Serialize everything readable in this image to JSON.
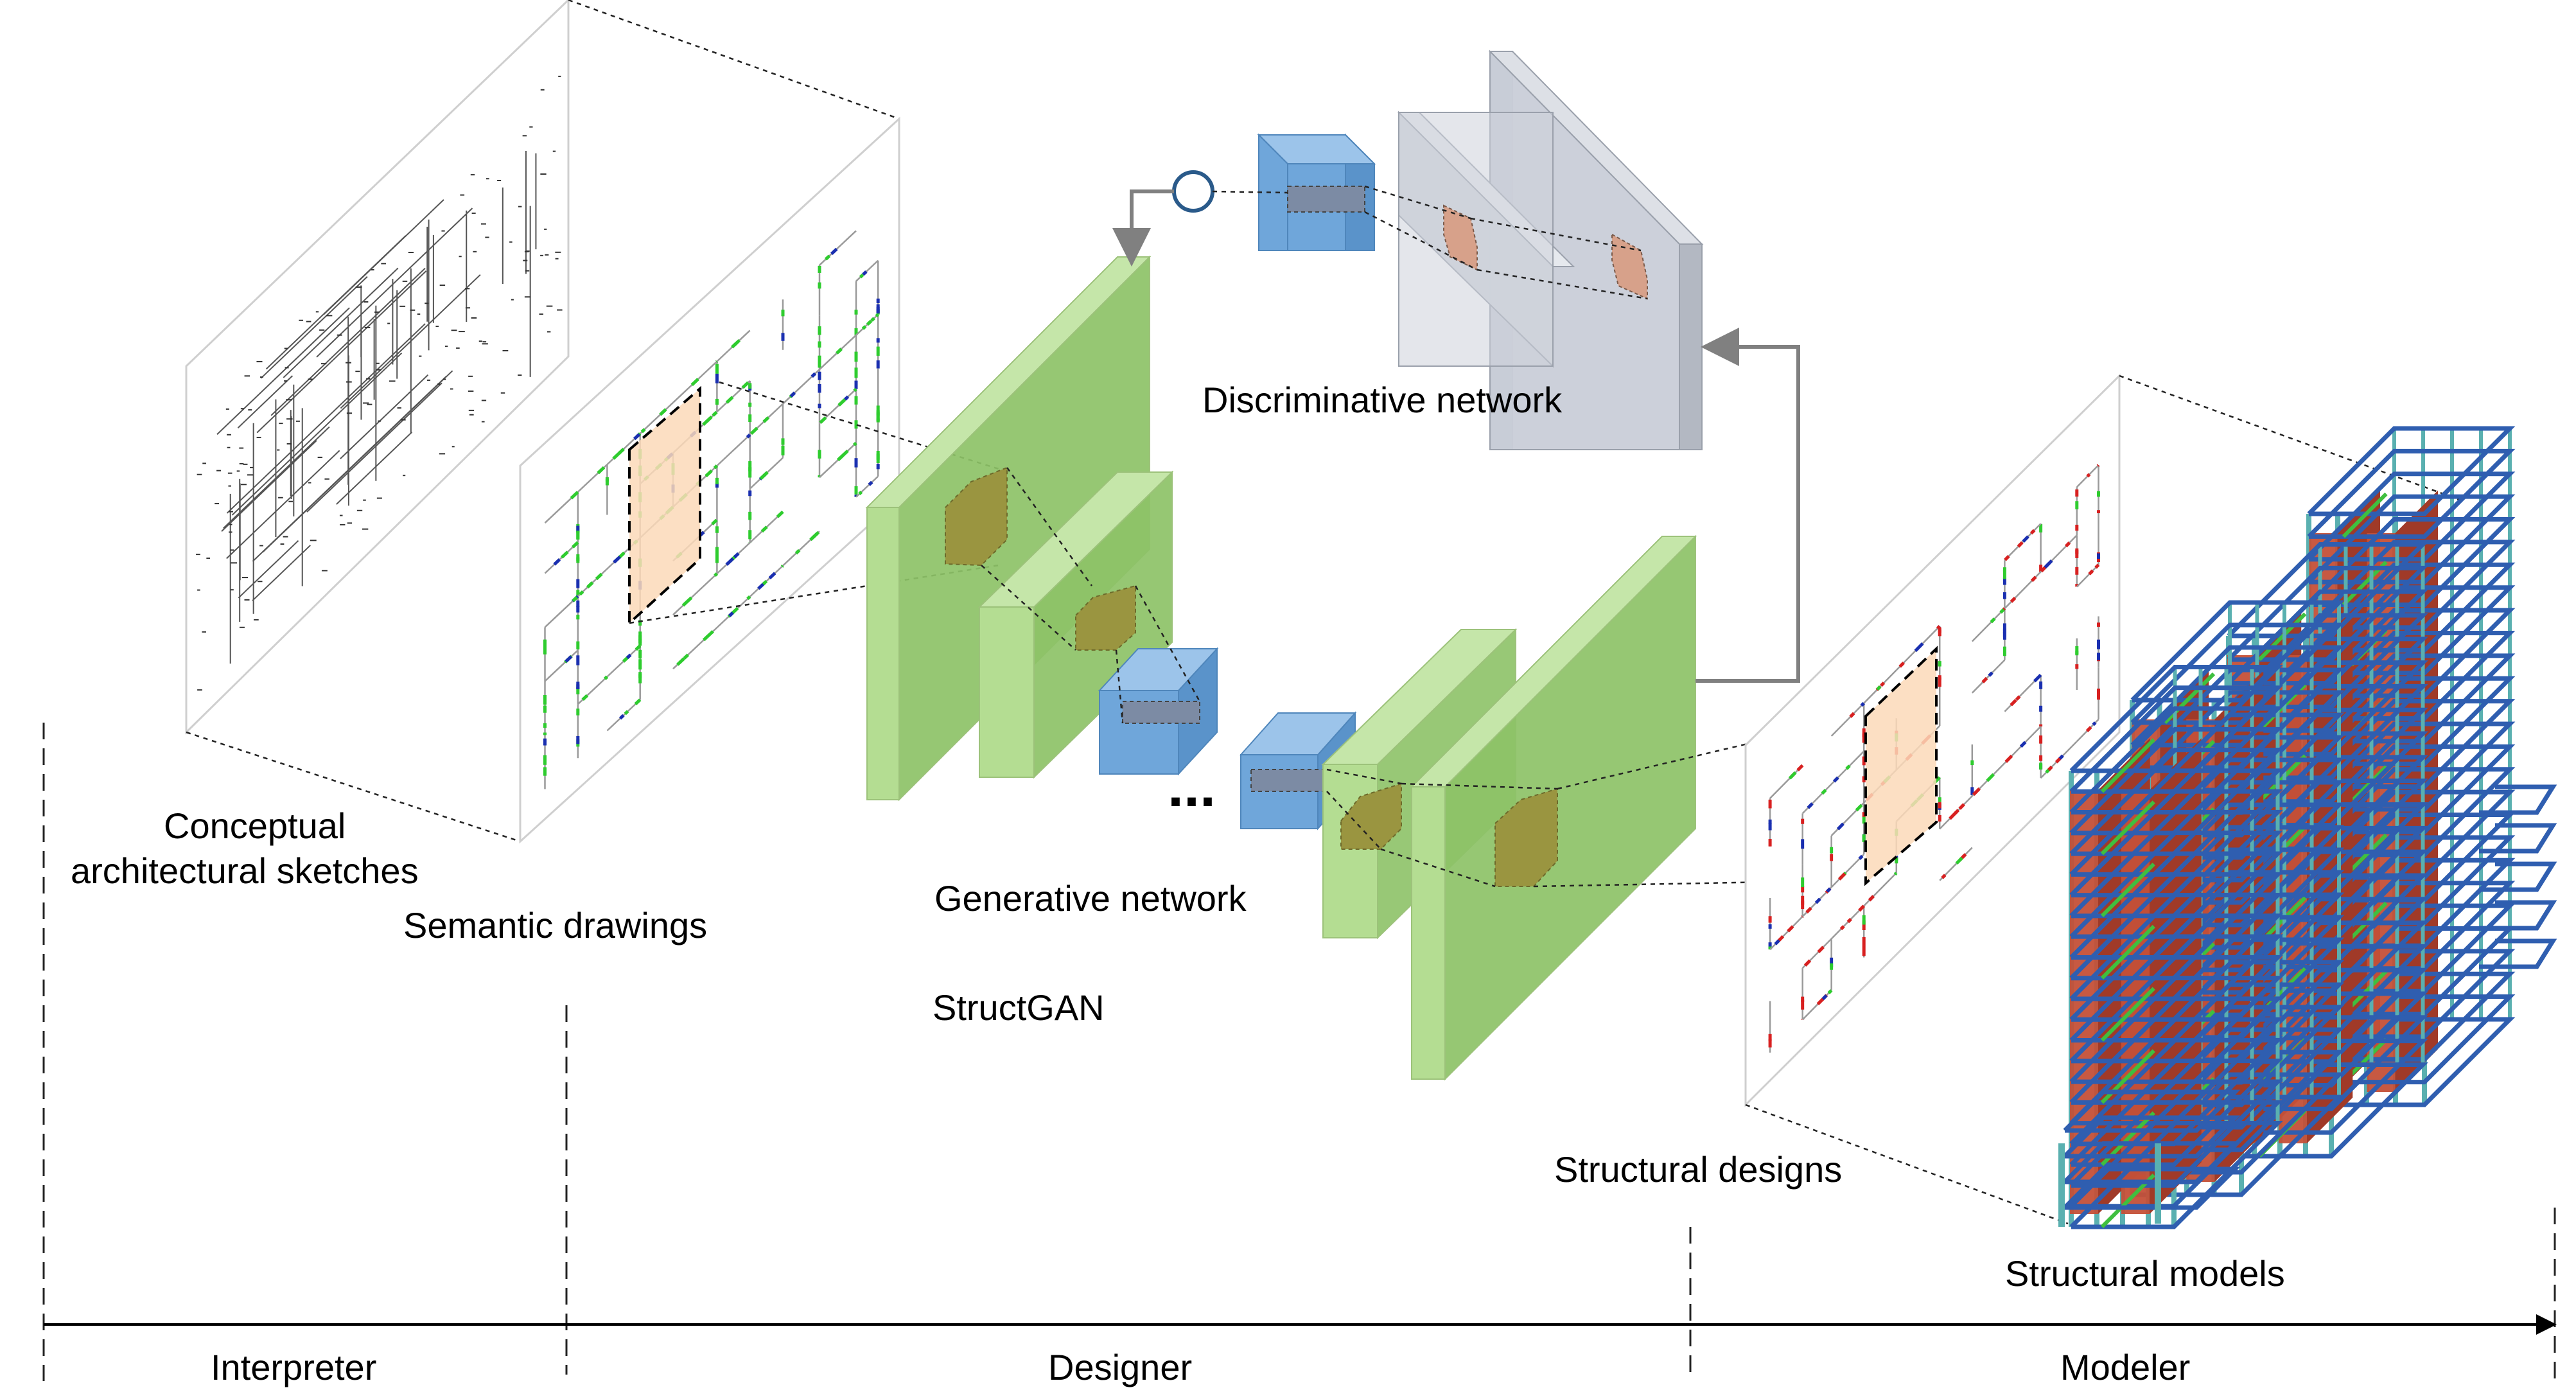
{
  "labels": {
    "conceptual_line1": "Conceptual",
    "conceptual_line2": "architectural sketches",
    "semantic": "Semantic drawings",
    "discriminative": "Discriminative network",
    "generative": "Generative network",
    "structgan": "StructGAN",
    "structural_designs": "Structural designs",
    "structural_models": "Structural models",
    "ellipsis": "..."
  },
  "stages": [
    {
      "label": "Interpreter"
    },
    {
      "label": "Designer"
    },
    {
      "label": "Modeler"
    }
  ],
  "colors": {
    "generator_green": "#8dc267",
    "generator_green_light": "#b4dd92",
    "encoder_blue": "#6fa6da",
    "discriminator_gray": "#c9ced8",
    "feature_olive": "#9a9540",
    "highlight_peach": "#fbd9b8",
    "wall_green": "#2ecc2e",
    "wall_red": "#d82020",
    "column_blue": "#1a2fb0",
    "model_frame_blue": "#2f5eb0",
    "model_shearwall_red": "#c45038",
    "model_column_teal": "#5ab0b0"
  }
}
